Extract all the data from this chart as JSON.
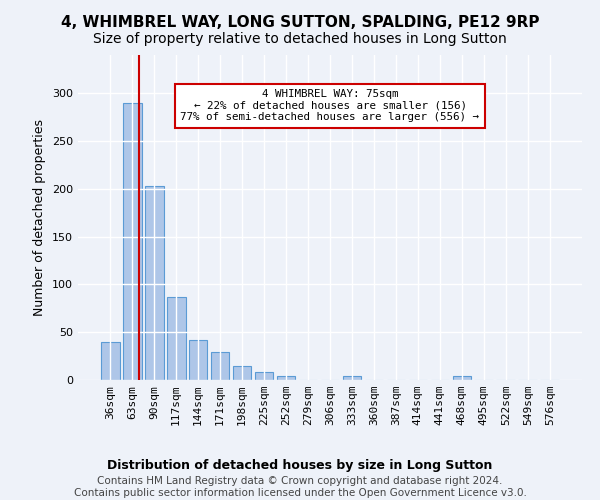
{
  "title": "4, WHIMBREL WAY, LONG SUTTON, SPALDING, PE12 9RP",
  "subtitle": "Size of property relative to detached houses in Long Sutton",
  "xlabel": "Distribution of detached houses by size in Long Sutton",
  "ylabel": "Number of detached properties",
  "categories": [
    "36sqm",
    "63sqm",
    "90sqm",
    "117sqm",
    "144sqm",
    "171sqm",
    "198sqm",
    "225sqm",
    "252sqm",
    "279sqm",
    "306sqm",
    "333sqm",
    "360sqm",
    "387sqm",
    "414sqm",
    "441sqm",
    "468sqm",
    "495sqm",
    "522sqm",
    "549sqm",
    "576sqm"
  ],
  "values": [
    40,
    290,
    203,
    87,
    42,
    29,
    15,
    8,
    4,
    0,
    0,
    4,
    0,
    0,
    0,
    0,
    4,
    0,
    0,
    0,
    0
  ],
  "bar_color": "#aec6e8",
  "bar_edge_color": "#5b9bd5",
  "property_line_x": 1.3,
  "property_line_color": "#cc0000",
  "annotation_text": "4 WHIMBREL WAY: 75sqm\n← 22% of detached houses are smaller (156)\n77% of semi-detached houses are larger (556) →",
  "annotation_box_color": "#ffffff",
  "annotation_box_edge_color": "#cc0000",
  "ylim": [
    0,
    340
  ],
  "yticks": [
    0,
    50,
    100,
    150,
    200,
    250,
    300,
    350
  ],
  "footer_line1": "Contains HM Land Registry data © Crown copyright and database right 2024.",
  "footer_line2": "Contains public sector information licensed under the Open Government Licence v3.0.",
  "background_color": "#eef2f9",
  "grid_color": "#ffffff",
  "title_fontsize": 11,
  "subtitle_fontsize": 10,
  "axis_label_fontsize": 9,
  "tick_fontsize": 8,
  "footer_fontsize": 7.5
}
